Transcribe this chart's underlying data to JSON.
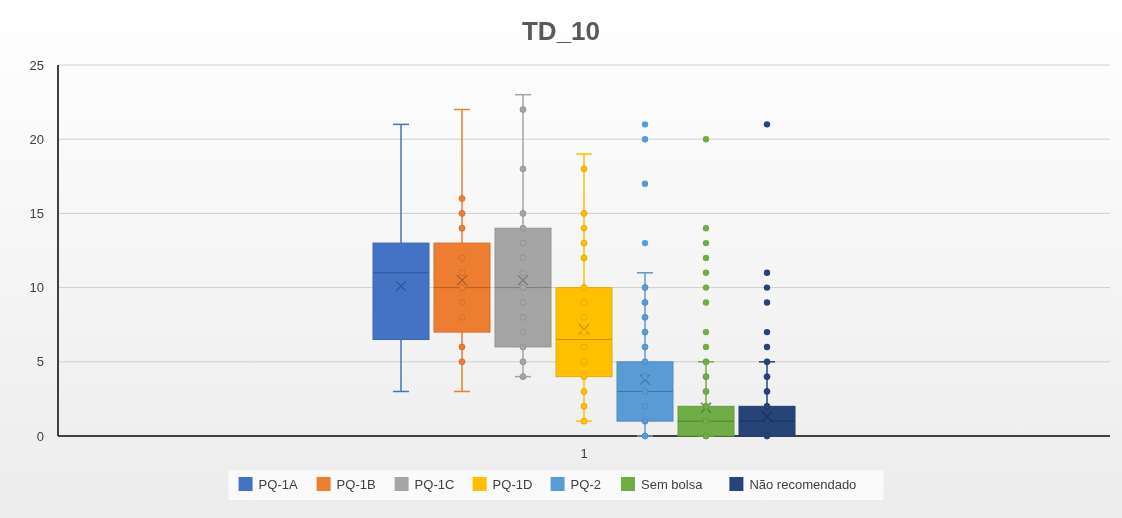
{
  "chart_data": {
    "type": "box",
    "title": "TD_10",
    "categories": [
      "1"
    ],
    "ylim": [
      0,
      25
    ],
    "yticks": [
      0,
      5,
      10,
      15,
      20,
      25
    ],
    "grid": "y",
    "legend": "bottom",
    "series": [
      {
        "name": "PQ-1A",
        "color": "#4472c4",
        "boxes": [
          {
            "low": 3,
            "q1": 6.5,
            "median": 11,
            "q3": 13,
            "high": 21,
            "mean": 10.1
          }
        ]
      },
      {
        "name": "PQ-1B",
        "color": "#ed7d31",
        "boxes": [
          {
            "low": 3,
            "q1": 7,
            "median": 10,
            "q3": 13,
            "high": 22,
            "mean": 10.5
          }
        ]
      },
      {
        "name": "PQ-1C",
        "color": "#a5a5a5",
        "boxes": [
          {
            "low": 4,
            "q1": 6,
            "median": 10,
            "q3": 14,
            "high": 23,
            "mean": 10.5
          }
        ]
      },
      {
        "name": "PQ-1D",
        "color": "#ffc000",
        "boxes": [
          {
            "low": 1,
            "q1": 4,
            "median": 6.5,
            "q3": 10,
            "high": 19,
            "mean": 7.2
          }
        ]
      },
      {
        "name": "PQ-2",
        "color": "#5b9bd5",
        "boxes": [
          {
            "low": 0,
            "q1": 1,
            "median": 3,
            "q3": 5,
            "high": 11,
            "mean": 3.8,
            "outliers": [
              13,
              17,
              20,
              21
            ]
          }
        ]
      },
      {
        "name": "Sem bolsa",
        "color": "#70ad47",
        "boxes": [
          {
            "low": 0,
            "q1": 0,
            "median": 1,
            "q3": 2,
            "high": 5,
            "mean": 1.9,
            "outliers": [
              6,
              7,
              9,
              10,
              11,
              12,
              13,
              14,
              20
            ]
          }
        ]
      },
      {
        "name": "Não recomendado",
        "color": "#264478",
        "boxes": [
          {
            "low": 0,
            "q1": 0,
            "median": 1,
            "q3": 2,
            "high": 5,
            "mean": 1.3,
            "outliers": [
              6,
              7,
              9,
              10,
              11,
              21
            ]
          }
        ]
      },
      {
        "type": "scatter",
        "color": "#ed7d31",
        "x": [
          "1",
          "1",
          "1",
          "1",
          "1",
          "1",
          "1",
          "1",
          "1",
          "1"
        ],
        "values": [
          16,
          15,
          14,
          12,
          11,
          10,
          9,
          8,
          6,
          5
        ]
      },
      {
        "type": "scatter",
        "color": "#a5a5a5",
        "x": [
          "1",
          "1",
          "1",
          "1",
          "1",
          "1",
          "1",
          "1",
          "1",
          "1",
          "1",
          "1",
          "1",
          "1"
        ],
        "values": [
          22,
          18,
          15,
          14,
          13,
          12,
          11,
          10,
          9,
          8,
          7,
          6,
          5,
          4
        ]
      },
      {
        "type": "scatter",
        "color": "#ffc000",
        "x": [
          "1",
          "1",
          "1",
          "1",
          "1",
          "1",
          "1",
          "1",
          "1",
          "1",
          "1",
          "1",
          "1",
          "1",
          "1"
        ],
        "values": [
          18,
          15,
          14,
          13,
          12,
          10,
          9,
          8,
          7,
          6,
          5,
          4,
          3,
          2,
          1
        ]
      },
      {
        "type": "scatter",
        "color": "#5b9bd5",
        "x": [
          "1",
          "1",
          "1",
          "1",
          "1",
          "1",
          "1",
          "1",
          "1",
          "1",
          "1"
        ],
        "values": [
          10,
          9,
          8,
          7,
          6,
          5,
          4,
          3,
          2,
          1,
          0
        ]
      },
      {
        "type": "scatter",
        "color": "#70ad47",
        "x": [
          "1",
          "1",
          "1",
          "1",
          "1",
          "1"
        ],
        "values": [
          5,
          4,
          3,
          2,
          1,
          0
        ]
      },
      {
        "type": "scatter",
        "color": "#264478",
        "x": [
          "1",
          "1",
          "1",
          "1",
          "1",
          "1"
        ],
        "values": [
          5,
          4,
          3,
          2,
          1,
          0
        ]
      }
    ]
  }
}
